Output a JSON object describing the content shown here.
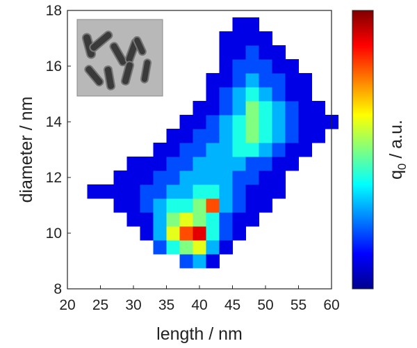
{
  "chart_data": {
    "type": "heatmap",
    "xlabel": "length / nm",
    "ylabel": "diameter / nm",
    "colorbar_label": [
      "q",
      "0",
      " / a.u."
    ],
    "colormap": "jet",
    "zlim": [
      0,
      1
    ],
    "xlim": [
      20,
      60
    ],
    "xticks": [
      20,
      25,
      30,
      35,
      40,
      45,
      50,
      55,
      60
    ],
    "ylim": [
      8,
      18
    ],
    "yticks": [
      8,
      10,
      12,
      14,
      16,
      18
    ],
    "x": [
      24,
      26,
      28,
      30,
      32,
      34,
      36,
      38,
      40,
      42,
      44,
      46,
      48,
      50,
      52,
      54,
      56,
      58,
      60
    ],
    "y": [
      9,
      9.5,
      10,
      10.5,
      11,
      11.5,
      12,
      12.5,
      13,
      13.5,
      14,
      14.5,
      15,
      15.5,
      16,
      16.5,
      17,
      17.5
    ],
    "z": [
      [
        null,
        null,
        null,
        null,
        null,
        null,
        null,
        0.2,
        0.3,
        0.1,
        null,
        null,
        null,
        null,
        null,
        null,
        null,
        null,
        null
      ],
      [
        null,
        null,
        null,
        null,
        null,
        0.2,
        0.4,
        0.5,
        0.6,
        0.3,
        0.1,
        null,
        null,
        null,
        null,
        null,
        null,
        null,
        null
      ],
      [
        null,
        null,
        null,
        null,
        0.1,
        0.3,
        0.6,
        0.8,
        0.9,
        0.4,
        0.2,
        0.1,
        null,
        null,
        null,
        null,
        null,
        null,
        null
      ],
      [
        null,
        null,
        null,
        0.1,
        0.1,
        0.3,
        0.5,
        0.6,
        0.5,
        0.4,
        0.2,
        0.1,
        0.1,
        null,
        null,
        null,
        null,
        null,
        null
      ],
      [
        null,
        null,
        0.1,
        0.1,
        0.2,
        0.3,
        0.4,
        0.4,
        0.5,
        0.8,
        0.3,
        0.2,
        0.1,
        0.1,
        null,
        null,
        null,
        null,
        null
      ],
      [
        0.1,
        0.1,
        0.1,
        0.1,
        0.2,
        0.2,
        0.3,
        0.3,
        0.4,
        0.4,
        0.3,
        0.2,
        0.1,
        0.1,
        0.1,
        null,
        null,
        null,
        null
      ],
      [
        null,
        null,
        0.1,
        0.1,
        0.1,
        0.2,
        0.2,
        0.3,
        0.3,
        0.3,
        0.3,
        0.2,
        0.2,
        0.1,
        0.1,
        null,
        null,
        null,
        null
      ],
      [
        null,
        null,
        null,
        0.1,
        0.1,
        0.1,
        0.2,
        0.2,
        0.3,
        0.3,
        0.3,
        0.3,
        0.2,
        0.2,
        0.1,
        0.1,
        null,
        null,
        null
      ],
      [
        null,
        null,
        null,
        null,
        null,
        0.1,
        0.1,
        0.2,
        0.2,
        0.3,
        0.3,
        0.4,
        0.4,
        0.3,
        0.2,
        0.1,
        0.1,
        null,
        null
      ],
      [
        null,
        null,
        null,
        null,
        null,
        null,
        0.1,
        0.1,
        0.2,
        0.2,
        0.3,
        0.4,
        0.5,
        0.4,
        0.3,
        0.2,
        0.1,
        0.1,
        null
      ],
      [
        null,
        null,
        null,
        null,
        null,
        null,
        null,
        0.1,
        0.1,
        0.2,
        0.3,
        0.4,
        0.5,
        0.4,
        0.3,
        0.2,
        0.1,
        0.1,
        0.1
      ],
      [
        null,
        null,
        null,
        null,
        null,
        null,
        null,
        null,
        0.1,
        0.1,
        0.2,
        0.3,
        0.5,
        0.4,
        0.3,
        0.2,
        0.1,
        0.1,
        null
      ],
      [
        null,
        null,
        null,
        null,
        null,
        null,
        null,
        null,
        null,
        0.1,
        0.2,
        0.3,
        0.4,
        0.3,
        0.2,
        0.1,
        0.1,
        null,
        null
      ],
      [
        null,
        null,
        null,
        null,
        null,
        null,
        null,
        null,
        null,
        0.1,
        0.1,
        0.2,
        0.3,
        0.2,
        0.2,
        0.1,
        0.1,
        null,
        null
      ],
      [
        null,
        null,
        null,
        null,
        null,
        null,
        null,
        null,
        null,
        null,
        0.1,
        0.2,
        0.2,
        0.2,
        0.1,
        0.1,
        null,
        null,
        null
      ],
      [
        null,
        null,
        null,
        null,
        null,
        null,
        null,
        null,
        null,
        null,
        0.1,
        0.1,
        0.2,
        0.1,
        0.1,
        null,
        null,
        null,
        null
      ],
      [
        null,
        null,
        null,
        null,
        null,
        null,
        null,
        null,
        null,
        null,
        0.1,
        0.1,
        0.1,
        0.1,
        null,
        null,
        null,
        null,
        null
      ],
      [
        null,
        null,
        null,
        null,
        null,
        null,
        null,
        null,
        null,
        null,
        null,
        0.1,
        0.1,
        null,
        null,
        null,
        null,
        null,
        null
      ]
    ]
  }
}
